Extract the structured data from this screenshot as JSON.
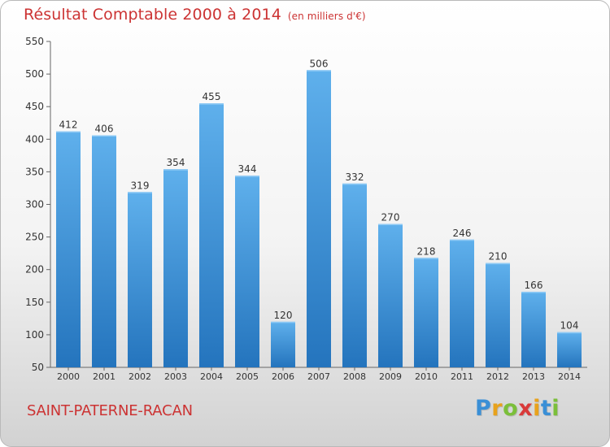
{
  "header": {
    "title": "Résultat Comptable 2000 à 2014",
    "unit": "(en milliers d'€)"
  },
  "footer": {
    "commune": "SAINT-PATERNE-RACAN",
    "logo": {
      "letters": [
        "P",
        "r",
        "o",
        "x",
        "i",
        "t",
        "i"
      ],
      "colors": [
        "#3a8fd6",
        "#e8a21c",
        "#7bbf3a",
        "#d93a3a",
        "#e8a21c",
        "#3a8fd6",
        "#7bbf3a"
      ]
    }
  },
  "colors": {
    "title": "#cc3333",
    "bar_top": "#5fb0ec",
    "bar_bottom": "#2474bd",
    "axis": "#666666"
  },
  "chart_data": {
    "type": "bar",
    "categories": [
      "2000",
      "2001",
      "2002",
      "2003",
      "2004",
      "2005",
      "2006",
      "2007",
      "2008",
      "2009",
      "2010",
      "2011",
      "2012",
      "2013",
      "2014"
    ],
    "values": [
      412,
      406,
      319,
      354,
      455,
      344,
      120,
      506,
      332,
      270,
      218,
      246,
      210,
      166,
      104
    ],
    "ylim": [
      50,
      550
    ],
    "yticks": [
      50,
      100,
      150,
      200,
      250,
      300,
      350,
      400,
      450,
      500,
      550
    ],
    "grid": false,
    "data_labels": true
  }
}
